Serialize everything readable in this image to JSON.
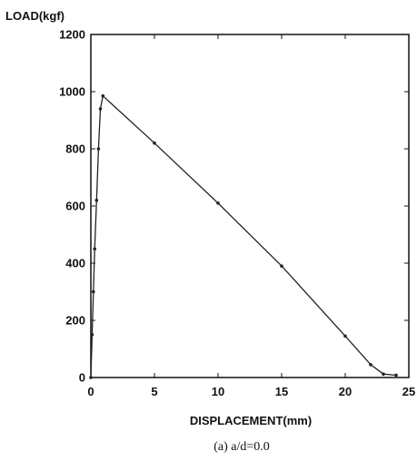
{
  "chart_data": {
    "type": "line",
    "ylabel": "LOAD(kgf)",
    "xlabel": "DISPLACEMENT(mm)",
    "caption": "(a) a/d=0.0",
    "xlim": [
      0,
      25
    ],
    "ylim": [
      0,
      1200
    ],
    "x_ticks": [
      0,
      5,
      10,
      15,
      20,
      25
    ],
    "y_ticks": [
      0,
      200,
      400,
      600,
      800,
      1000,
      1200
    ],
    "grid": false,
    "series": [
      {
        "x": [
          0.0,
          0.1,
          0.2,
          0.3,
          0.45,
          0.6,
          0.75,
          0.95,
          5.0,
          10.0,
          15.0,
          20.0,
          22.0,
          23.0,
          24.0
        ],
        "y": [
          0,
          150,
          300,
          450,
          620,
          800,
          940,
          985,
          820,
          610,
          390,
          145,
          45,
          12,
          8
        ]
      }
    ],
    "colors": {
      "line": "#222222",
      "axis": "#111111"
    }
  }
}
